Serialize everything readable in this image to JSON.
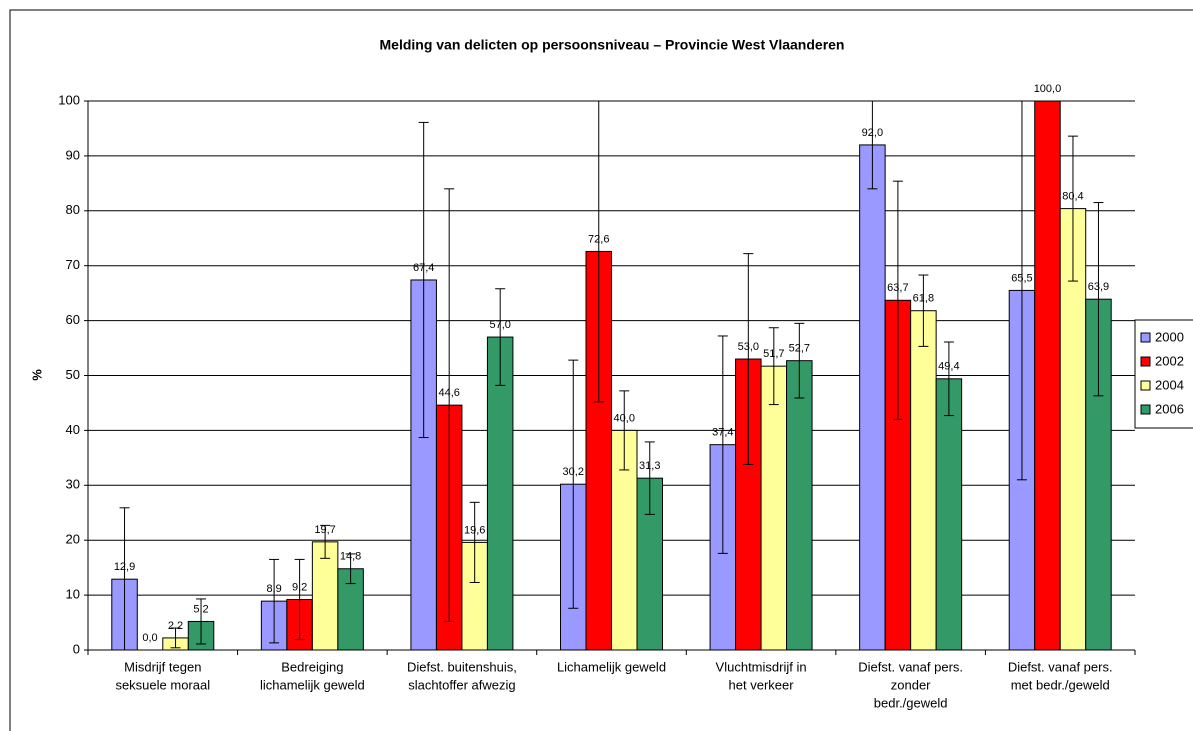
{
  "chart_data": {
    "type": "bar",
    "title": "Melding van delicten op persoonsniveau – Provincie West Vlaanderen",
    "y_label": "%",
    "categories": [
      [
        "Misdrijf tegen",
        "seksuele moraal"
      ],
      [
        "Bedreiging",
        "lichamelijk geweld"
      ],
      [
        "Diefst. buitenshuis,",
        "slachtoffer afwezig"
      ],
      [
        "Lichamelijk geweld"
      ],
      [
        "Vluchtmisdrijf in",
        "het verkeer"
      ],
      [
        "Diefst. vanaf pers.",
        "zonder",
        "bedr./geweld"
      ],
      [
        "Diefst. vanaf pers.",
        "met bedr./geweld"
      ]
    ],
    "series": [
      {
        "name": "2000",
        "color": "#9999ff",
        "values": [
          12.9,
          8.9,
          67.4,
          30.2,
          37.4,
          92.0,
          65.5
        ],
        "value_labels": [
          "12,9",
          "8,9",
          "67,4",
          "30,2",
          "37,4",
          "92,0",
          "65,5"
        ],
        "errors": [
          13,
          7.6,
          28.7,
          22.6,
          19.8,
          8,
          34.5
        ]
      },
      {
        "name": "2002",
        "color": "#ff0000",
        "values": [
          0.0,
          9.2,
          44.6,
          72.6,
          53.0,
          63.7,
          100.0
        ],
        "value_labels": [
          "0,0",
          "9,2",
          "44,6",
          "72,6",
          "53,0",
          "63,7",
          "100,0"
        ],
        "errors": [
          0,
          7.3,
          39.4,
          27.4,
          19.2,
          21.7,
          0
        ]
      },
      {
        "name": "2004",
        "color": "#ffff99",
        "values": [
          2.2,
          19.7,
          19.6,
          40.0,
          51.7,
          61.8,
          80.4
        ],
        "value_labels": [
          "2,2",
          "19,7",
          "19,6",
          "40,0",
          "51,7",
          "61,8",
          "80,4"
        ],
        "errors": [
          1.8,
          3,
          7.3,
          7.2,
          7,
          6.5,
          13.2
        ]
      },
      {
        "name": "2006",
        "color": "#339966",
        "values": [
          5.2,
          14.8,
          57.0,
          31.3,
          52.7,
          49.4,
          63.9
        ],
        "value_labels": [
          "5,2",
          "14,8",
          "57,0",
          "31,3",
          "52,7",
          "49,4",
          "63,9"
        ],
        "errors": [
          4.1,
          2.7,
          8.8,
          6.6,
          6.8,
          6.7,
          17.6
        ]
      }
    ],
    "ylim": [
      0,
      100
    ],
    "yticks": [
      0,
      10,
      20,
      30,
      40,
      50,
      60,
      70,
      80,
      90,
      100
    ],
    "grid": true,
    "legend": "right"
  }
}
